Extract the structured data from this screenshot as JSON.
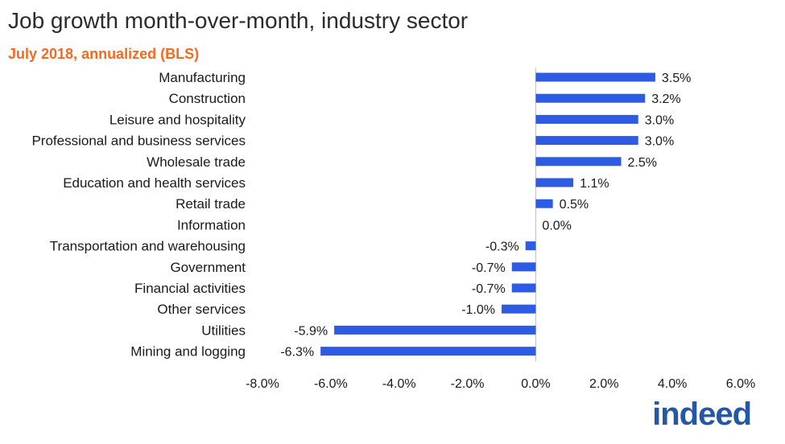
{
  "chart_data": {
    "type": "bar",
    "orientation": "horizontal",
    "title": "Job growth month-over-month, industry sector",
    "subtitle": "July 2018, annualized (BLS)",
    "categories": [
      "Manufacturing",
      "Construction",
      "Leisure and hospitality",
      "Professional and business services",
      "Wholesale trade",
      "Education and health services",
      "Retail trade",
      "Information",
      "Transportation and warehousing",
      "Government",
      "Financial activities",
      "Other services",
      "Utilities",
      "Mining and logging"
    ],
    "values": [
      3.5,
      3.2,
      3.0,
      3.0,
      2.5,
      1.1,
      0.5,
      0.0,
      -0.3,
      -0.7,
      -0.7,
      -1.0,
      -5.9,
      -6.3
    ],
    "value_labels": [
      "3.5%",
      "3.2%",
      "3.0%",
      "3.0%",
      "2.5%",
      "1.1%",
      "0.5%",
      "0.0%",
      "-0.3%",
      "-0.7%",
      "-0.7%",
      "-1.0%",
      "-5.9%",
      "-6.3%"
    ],
    "xlim": [
      -8,
      6
    ],
    "xticks": [
      -8,
      -6,
      -4,
      -2,
      0,
      2,
      4,
      6
    ],
    "xtick_labels": [
      "-8.0%",
      "-6.0%",
      "-4.0%",
      "-2.0%",
      "0.0%",
      "2.0%",
      "4.0%",
      "6.0%"
    ],
    "xlabel": "",
    "ylabel": "",
    "grid": false,
    "legend": "none"
  },
  "colors": {
    "bar": "#2d5be3",
    "title": "#2b2b2b",
    "subtitle": "#f26b21",
    "label": "#1a1a1a",
    "axis": "#bfbfbf",
    "brand": "#2557a7"
  },
  "brand": {
    "logo_text": "indeed"
  }
}
